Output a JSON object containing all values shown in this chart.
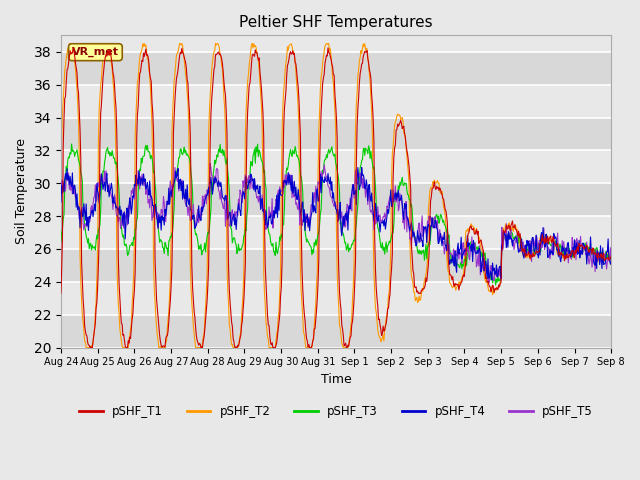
{
  "title": "Peltier SHF Temperatures",
  "xlabel": "Time",
  "ylabel": "Soil Temperature",
  "ylim": [
    20,
    39
  ],
  "yticks": [
    20,
    22,
    24,
    26,
    28,
    30,
    32,
    34,
    36,
    38
  ],
  "annotation_text": "VR_met",
  "line_colors": {
    "pSHF_T1": "#cc0000",
    "pSHF_T2": "#ff9900",
    "pSHF_T3": "#00cc00",
    "pSHF_T4": "#0000cc",
    "pSHF_T5": "#9933cc"
  },
  "background_color": "#e8e8e8",
  "plot_bg_color": "#e8e8e8",
  "grid_color": "#ffffff",
  "tick_labels": [
    "Aug 24",
    "Aug 25",
    "Aug 26",
    "Aug 27",
    "Aug 28",
    "Aug 29",
    "Aug 30",
    "Aug 31",
    "Sep 1",
    "Sep 2",
    "Sep 3",
    "Sep 4",
    "Sep 5",
    "Sep 6",
    "Sep 7",
    "Sep 8"
  ]
}
